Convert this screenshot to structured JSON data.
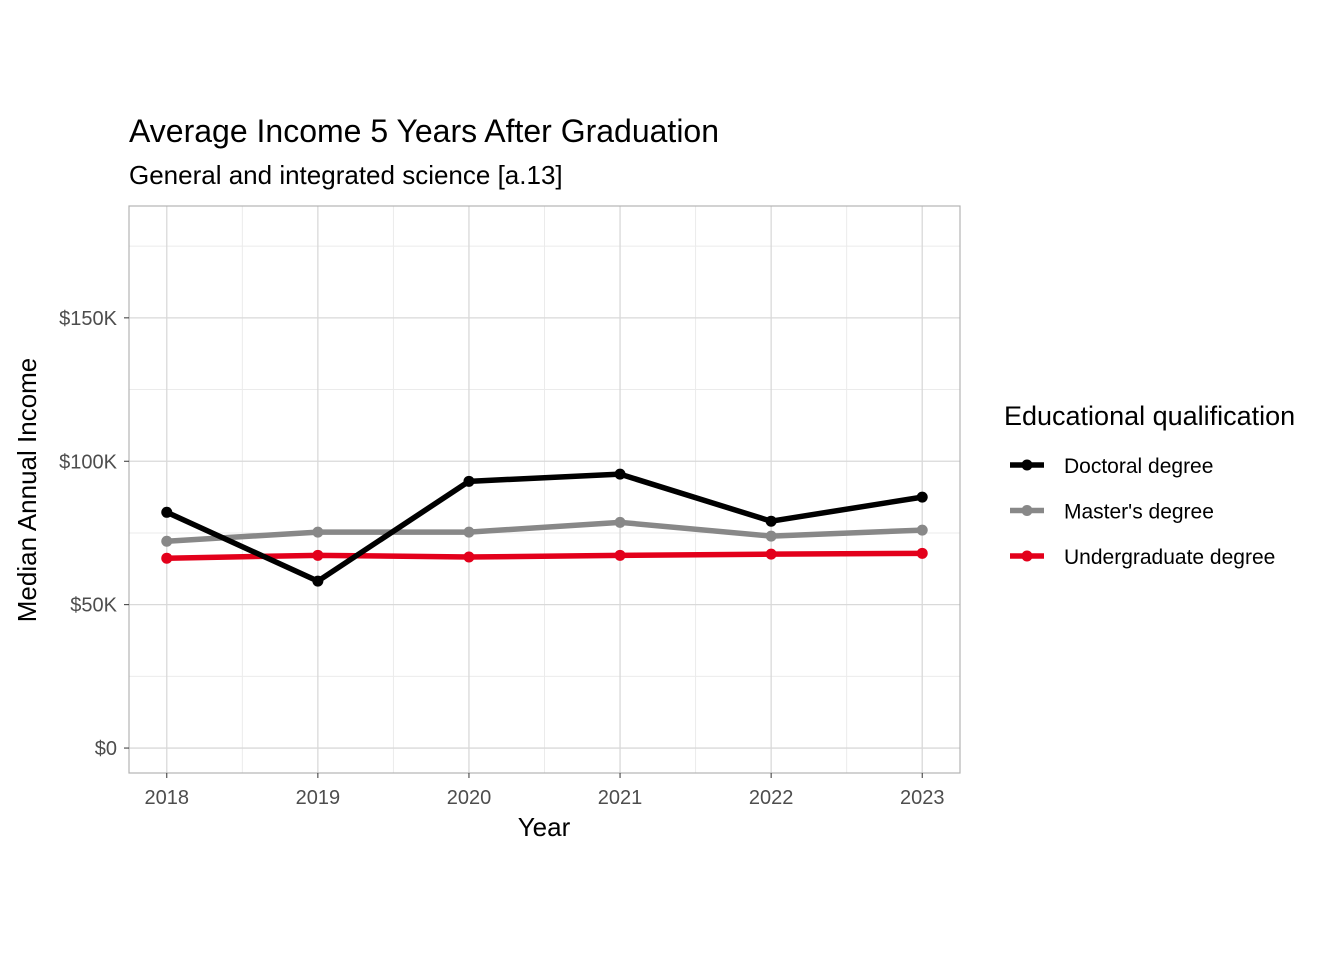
{
  "chart_data": {
    "type": "line",
    "title": "Average Income 5 Years After Graduation",
    "subtitle": "General and integrated science [a.13]",
    "xlabel": "Year",
    "ylabel": "Median Annual Income",
    "x": [
      2018,
      2019,
      2020,
      2021,
      2022,
      2023
    ],
    "xlim": [
      2017.75,
      2023.25
    ],
    "ylim": [
      -8700,
      189000
    ],
    "yticks": [
      0,
      50000,
      100000,
      150000
    ],
    "ytick_labels": [
      "$0",
      "$50K",
      "$100K",
      "$150K"
    ],
    "xtick_labels": [
      "2018",
      "2019",
      "2020",
      "2021",
      "2022",
      "2023"
    ],
    "grid": true,
    "legend": {
      "title": "Educational qualification",
      "placement": "right"
    },
    "series": [
      {
        "name": "Doctoral degree",
        "color": "#000000",
        "values": [
          82200,
          58200,
          93000,
          95500,
          79100,
          87500
        ]
      },
      {
        "name": "Master's degree",
        "color": "#888888",
        "values": [
          72100,
          75300,
          75300,
          78700,
          73900,
          76000
        ]
      },
      {
        "name": "Undergraduate degree",
        "color": "#e3001b",
        "values": [
          66200,
          67200,
          66600,
          67200,
          67600,
          67900
        ]
      }
    ]
  }
}
